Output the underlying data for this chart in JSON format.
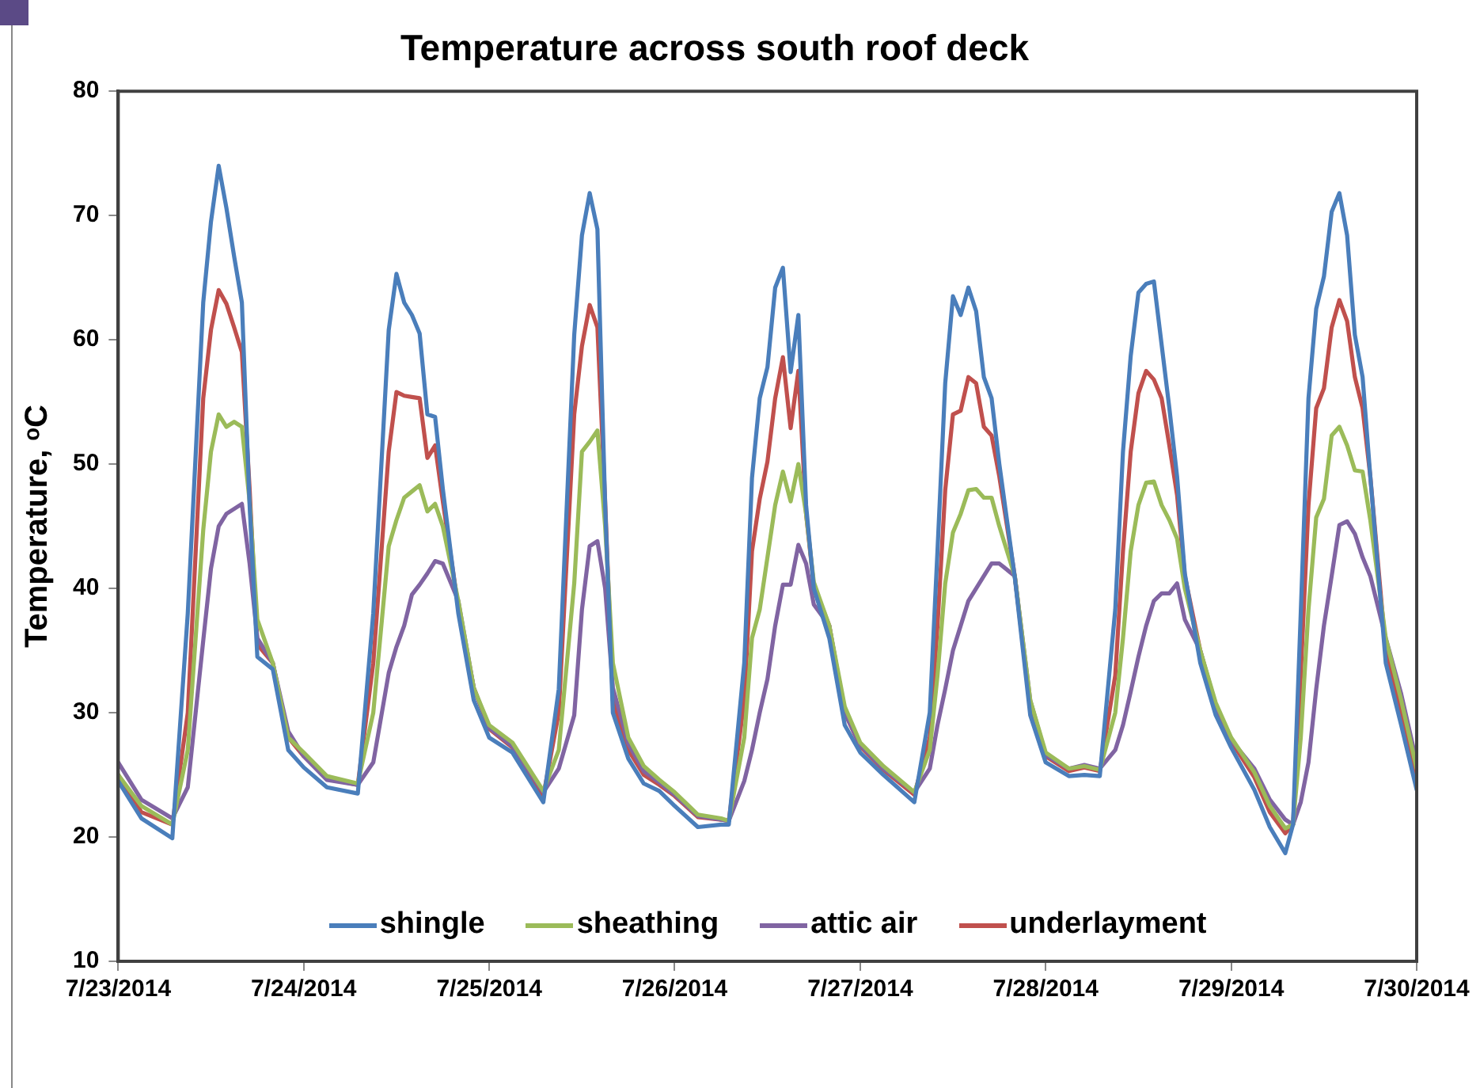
{
  "chart_data": {
    "type": "line",
    "title": "Temperature across south roof deck",
    "ylabel": "Temperature, ᵒC",
    "x": [
      "2014-07-23T00:00",
      "2014-07-23T03:00",
      "2014-07-23T07:00",
      "2014-07-23T09:00",
      "2014-07-23T11:00",
      "2014-07-23T12:00",
      "2014-07-23T13:00",
      "2014-07-23T14:00",
      "2014-07-23T15:00",
      "2014-07-23T16:00",
      "2014-07-23T17:00",
      "2014-07-23T18:00",
      "2014-07-23T20:00",
      "2014-07-23T22:00",
      "2014-07-24T00:00",
      "2014-07-24T03:00",
      "2014-07-24T07:00",
      "2014-07-24T09:00",
      "2014-07-24T11:00",
      "2014-07-24T12:00",
      "2014-07-24T13:00",
      "2014-07-24T14:00",
      "2014-07-24T15:00",
      "2014-07-24T16:00",
      "2014-07-24T17:00",
      "2014-07-24T18:00",
      "2014-07-24T20:00",
      "2014-07-24T22:00",
      "2014-07-25T00:00",
      "2014-07-25T03:00",
      "2014-07-25T07:00",
      "2014-07-25T09:00",
      "2014-07-25T11:00",
      "2014-07-25T12:00",
      "2014-07-25T13:00",
      "2014-07-25T14:00",
      "2014-07-25T15:00",
      "2014-07-25T16:00",
      "2014-07-25T18:00",
      "2014-07-25T20:00",
      "2014-07-25T22:00",
      "2014-07-26T00:00",
      "2014-07-26T03:00",
      "2014-07-26T06:00",
      "2014-07-26T07:00",
      "2014-07-26T09:00",
      "2014-07-26T10:00",
      "2014-07-26T11:00",
      "2014-07-26T12:00",
      "2014-07-26T13:00",
      "2014-07-26T14:00",
      "2014-07-26T15:00",
      "2014-07-26T16:00",
      "2014-07-26T17:00",
      "2014-07-26T18:00",
      "2014-07-26T20:00",
      "2014-07-26T22:00",
      "2014-07-27T00:00",
      "2014-07-27T03:00",
      "2014-07-27T07:00",
      "2014-07-27T09:00",
      "2014-07-27T10:00",
      "2014-07-27T11:00",
      "2014-07-27T12:00",
      "2014-07-27T13:00",
      "2014-07-27T14:00",
      "2014-07-27T15:00",
      "2014-07-27T16:00",
      "2014-07-27T17:00",
      "2014-07-27T18:00",
      "2014-07-27T20:00",
      "2014-07-27T22:00",
      "2014-07-28T00:00",
      "2014-07-28T03:00",
      "2014-07-28T05:00",
      "2014-07-28T07:00",
      "2014-07-28T09:00",
      "2014-07-28T10:00",
      "2014-07-28T11:00",
      "2014-07-28T12:00",
      "2014-07-28T13:00",
      "2014-07-28T14:00",
      "2014-07-28T15:00",
      "2014-07-28T16:00",
      "2014-07-28T17:00",
      "2014-07-28T18:00",
      "2014-07-28T20:00",
      "2014-07-28T22:00",
      "2014-07-29T00:00",
      "2014-07-29T03:00",
      "2014-07-29T05:00",
      "2014-07-29T07:00",
      "2014-07-29T08:00",
      "2014-07-29T09:00",
      "2014-07-29T10:00",
      "2014-07-29T11:00",
      "2014-07-29T12:00",
      "2014-07-29T13:00",
      "2014-07-29T14:00",
      "2014-07-29T15:00",
      "2014-07-29T16:00",
      "2014-07-29T17:00",
      "2014-07-29T18:00",
      "2014-07-29T20:00",
      "2014-07-29T22:00",
      "2014-07-30T00:00"
    ],
    "series": [
      {
        "name": "shingle",
        "color": "#4a7ebb",
        "values": [
          24.5,
          21.5,
          19.9,
          38,
          63,
          69.5,
          74,
          70.6,
          66.7,
          63,
          46.7,
          34.5,
          33.5,
          27,
          25.6,
          24,
          23.5,
          38,
          60.8,
          65.3,
          63,
          62,
          60.5,
          54,
          53.8,
          48,
          38,
          31,
          28,
          26.8,
          22.8,
          31.9,
          60.4,
          68.4,
          71.8,
          68.9,
          46.7,
          30,
          26.3,
          24.3,
          23.7,
          22.5,
          20.8,
          21,
          21,
          34,
          48.9,
          55.3,
          57.8,
          64.2,
          65.8,
          57.4,
          62,
          46.7,
          40,
          36,
          29,
          26.8,
          25,
          22.8,
          30,
          43,
          56.5,
          63.5,
          62,
          64.2,
          62.3,
          57,
          55.3,
          50,
          40.9,
          29.8,
          26,
          24.9,
          25,
          24.9,
          38.3,
          51,
          58.7,
          63.8,
          64.5,
          64.7,
          59.6,
          54.5,
          49,
          41.2,
          34,
          29.8,
          27.2,
          23.8,
          20.8,
          18.7,
          21,
          38,
          55.3,
          62.5,
          65.1,
          70.3,
          71.8,
          68.4,
          60.4,
          57,
          49,
          34,
          29,
          23.8
        ]
      },
      {
        "name": "sheathing",
        "color": "#9bbb59",
        "values": [
          25,
          22.5,
          21,
          27,
          44.7,
          51,
          54,
          53,
          53.4,
          53,
          47,
          37.5,
          34,
          28,
          26.8,
          24.9,
          24.3,
          30,
          43.4,
          45.5,
          47.3,
          47.8,
          48.3,
          46.2,
          46.8,
          45,
          39,
          32,
          29,
          27.6,
          23.7,
          27,
          40.4,
          51,
          51.8,
          52.7,
          45,
          34,
          28,
          25.7,
          24.6,
          23.6,
          21.8,
          21.5,
          21.3,
          28,
          36,
          38.3,
          42.5,
          46.7,
          49.4,
          47,
          50,
          46,
          40.5,
          37,
          30.5,
          27.6,
          25.7,
          23.6,
          27,
          33,
          40.4,
          44.5,
          46,
          47.9,
          48,
          47.3,
          47.3,
          45,
          41,
          31,
          26.8,
          25.5,
          25.7,
          25.4,
          30,
          36,
          43,
          46.7,
          48.5,
          48.6,
          46.7,
          45.5,
          44,
          40,
          35,
          30.8,
          28,
          25.2,
          22.5,
          20.7,
          21,
          28,
          38.3,
          45.7,
          47.2,
          52.3,
          53,
          51.5,
          49.5,
          49.4,
          45.5,
          36,
          31,
          25.5
        ]
      },
      {
        "name": "attic air",
        "color": "#8064a2",
        "values": [
          26,
          23,
          21.5,
          24,
          35.8,
          41.6,
          45,
          46,
          46.4,
          46.8,
          42,
          36,
          34,
          28.5,
          26.5,
          24.6,
          24.2,
          26,
          33.2,
          35.3,
          37,
          39.5,
          40.3,
          41.2,
          42.2,
          42,
          39,
          32,
          28.8,
          27.3,
          23.6,
          25.5,
          29.8,
          38.3,
          43.4,
          43.8,
          40,
          32,
          27.5,
          25.3,
          24.4,
          23.4,
          21.7,
          21.4,
          21.3,
          24.5,
          27,
          30,
          32.7,
          37,
          40.3,
          40.3,
          43.5,
          42,
          38.7,
          37,
          30,
          27.4,
          25.5,
          23.6,
          25.5,
          29,
          31.9,
          35,
          37,
          39,
          40,
          41,
          42,
          42,
          41,
          31,
          26.6,
          25.5,
          25.8,
          25.5,
          27,
          29,
          31.7,
          34.5,
          37,
          39,
          39.6,
          39.6,
          40.4,
          37.5,
          35,
          30.6,
          27.8,
          25.5,
          23,
          21.4,
          21,
          22.8,
          26,
          31.9,
          37,
          41,
          45.1,
          45.4,
          44.4,
          42.5,
          41,
          36,
          31.5,
          26
        ]
      },
      {
        "name": "underlayment",
        "color": "#c0504d",
        "values": [
          25,
          22,
          21,
          30,
          55.3,
          60.8,
          64,
          62.9,
          61,
          59,
          48,
          35.5,
          34,
          28,
          26.5,
          24.7,
          24.2,
          34,
          51,
          55.8,
          55.5,
          55.4,
          55.3,
          50.5,
          51.5,
          47,
          38.5,
          32,
          28.7,
          27.2,
          23.3,
          30,
          54,
          59.5,
          62.8,
          61,
          47,
          31,
          27,
          25,
          24.2,
          23.3,
          21.6,
          21.4,
          21.3,
          31,
          43,
          47.2,
          50.2,
          55.3,
          58.6,
          52.9,
          57.5,
          46,
          40.2,
          37,
          30,
          27.3,
          25.4,
          23.4,
          28,
          37,
          47.9,
          54,
          54.3,
          57,
          56.5,
          53,
          52.3,
          49,
          41,
          30.5,
          26.5,
          25.3,
          25.6,
          25.3,
          33,
          43,
          51,
          55.7,
          57.5,
          56.8,
          55.3,
          51.5,
          47.5,
          41,
          35,
          30.4,
          27.7,
          24.8,
          22,
          20.3,
          21,
          33,
          46.7,
          54.5,
          56.1,
          61,
          63.2,
          61.5,
          57,
          54.5,
          49,
          35,
          30,
          24.8
        ]
      }
    ],
    "xlim": [
      "2014-07-23",
      "2014-07-30"
    ],
    "xticks": [
      {
        "value": "2014-07-23",
        "label": "7/23/2014"
      },
      {
        "value": "2014-07-24",
        "label": "7/24/2014"
      },
      {
        "value": "2014-07-25",
        "label": "7/25/2014"
      },
      {
        "value": "2014-07-26",
        "label": "7/26/2014"
      },
      {
        "value": "2014-07-27",
        "label": "7/27/2014"
      },
      {
        "value": "2014-07-28",
        "label": "7/28/2014"
      },
      {
        "value": "2014-07-29",
        "label": "7/29/2014"
      },
      {
        "value": "2014-07-30",
        "label": "7/30/2014"
      }
    ],
    "ylim": [
      10,
      80
    ],
    "yticks": [
      10,
      20,
      30,
      40,
      50,
      60,
      70,
      80
    ],
    "grid": false,
    "legend": "bottom",
    "marker": "none"
  }
}
